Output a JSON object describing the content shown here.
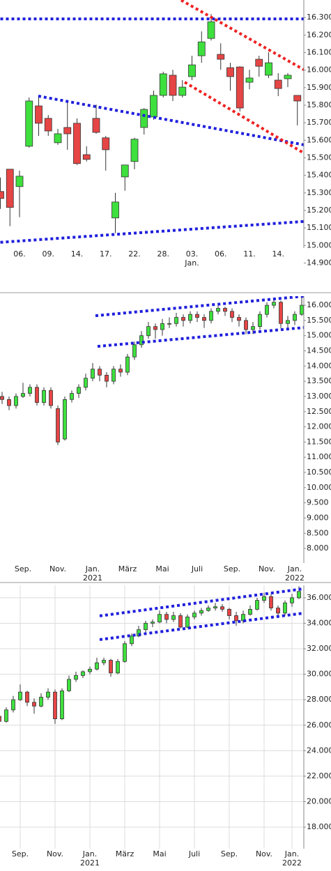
{
  "chart_data": [
    {
      "type": "candlestick",
      "categories": [
        null,
        null,
        "06.",
        null,
        null,
        "09.",
        null,
        null,
        "14.",
        null,
        null,
        "17.",
        null,
        null,
        "22.",
        null,
        null,
        "28.",
        null,
        null,
        "03.",
        null,
        null,
        "06.",
        null,
        null,
        "11.",
        null,
        null,
        "14.",
        null,
        null
      ],
      "x_sublabels": [
        null,
        null,
        null,
        null,
        null,
        null,
        null,
        null,
        null,
        null,
        null,
        null,
        null,
        null,
        null,
        null,
        null,
        null,
        null,
        null,
        "Jan.",
        null,
        null,
        null,
        null,
        null,
        null,
        null,
        null,
        null,
        null,
        null
      ],
      "open": [
        15308,
        15435,
        15336,
        15566,
        15796,
        15725,
        15586,
        15673,
        15697,
        15518,
        15725,
        15614,
        15157,
        15391,
        15479,
        15673,
        15733,
        15856,
        15971,
        15856,
        15963,
        16082,
        16181,
        16090,
        16014,
        16018,
        15931,
        16062,
        15971,
        15943,
        15951,
        15856
      ],
      "high": [
        15387,
        15435,
        15427,
        15844,
        15844,
        15744,
        15665,
        15824,
        15725,
        15566,
        15804,
        15625,
        15300,
        15459,
        15614,
        15784,
        15883,
        15991,
        16002,
        15943,
        16082,
        16221,
        16320,
        16153,
        16042,
        16022,
        16002,
        16082,
        16102,
        15983,
        15983,
        15856
      ],
      "low": [
        15209,
        15110,
        15161,
        15558,
        15625,
        15625,
        15574,
        15546,
        15459,
        15479,
        15637,
        15427,
        15070,
        15312,
        15435,
        15633,
        15717,
        15844,
        15824,
        15844,
        15943,
        16042,
        16169,
        16002,
        15883,
        15764,
        15891,
        15963,
        15955,
        15852,
        15903,
        15685
      ],
      "close": [
        15268,
        15217,
        15395,
        15824,
        15697,
        15653,
        15637,
        15637,
        15467,
        15491,
        15645,
        15546,
        15248,
        15459,
        15606,
        15776,
        15856,
        15979,
        15856,
        15903,
        16030,
        16161,
        16276,
        16062,
        15963,
        15784,
        15955,
        16022,
        16042,
        15895,
        15971,
        15824
      ],
      "up_color": "#3ee03e",
      "down_color": "#e64545",
      "ylim": [
        14870,
        16400
      ],
      "yticks": [
        {
          "value": 16300,
          "label": "16.300"
        },
        {
          "value": 16200,
          "label": "16.200"
        },
        {
          "value": 16100,
          "label": "16.100"
        },
        {
          "value": 16000,
          "label": "16.000"
        },
        {
          "value": 15900,
          "label": "15.900"
        },
        {
          "value": 15800,
          "label": "15.800"
        },
        {
          "value": 15700,
          "label": "15.700"
        },
        {
          "value": 15600,
          "label": "15.600"
        },
        {
          "value": 15500,
          "label": "15.500"
        },
        {
          "value": 15400,
          "label": "15.400"
        },
        {
          "value": 15300,
          "label": "15.300"
        },
        {
          "value": 15200,
          "label": "15.200"
        },
        {
          "value": 15100,
          "label": "15.100"
        },
        {
          "value": 15000,
          "label": "15.000"
        },
        {
          "value": 14900,
          "label": "14.900"
        }
      ],
      "grid": false,
      "lines": [
        {
          "color": "#1f1fdd",
          "x": [
            0,
            31.7
          ],
          "y": [
            16292,
            16292
          ]
        },
        {
          "color": "#1f1fdd",
          "x": [
            0,
            31.7
          ],
          "y": [
            15018,
            15137
          ]
        },
        {
          "color": "#1f1fdd",
          "x": [
            3.96,
            31.7
          ],
          "y": [
            15852,
            15574
          ]
        },
        {
          "color": "#ee2222",
          "x": [
            18.87,
            31.7
          ],
          "y": [
            16399,
            16002
          ]
        },
        {
          "color": "#ee2222",
          "x": [
            19.24,
            31.7
          ],
          "y": [
            15931,
            15526
          ]
        }
      ]
    },
    {
      "type": "candlestick",
      "categories": [
        null,
        null,
        null,
        "Sep.",
        null,
        null,
        null,
        null,
        "Nov.",
        null,
        null,
        null,
        null,
        "Jan.",
        null,
        null,
        null,
        null,
        "März",
        null,
        null,
        null,
        null,
        "Mai",
        null,
        null,
        null,
        null,
        "Juli",
        null,
        null,
        null,
        null,
        "Sep.",
        null,
        null,
        null,
        null,
        "Nov.",
        null,
        null,
        null,
        "Jan.",
        null
      ],
      "x_sublabels": [
        null,
        null,
        null,
        null,
        null,
        null,
        null,
        null,
        null,
        null,
        null,
        null,
        null,
        "2021",
        null,
        null,
        null,
        null,
        null,
        null,
        null,
        null,
        null,
        null,
        null,
        null,
        null,
        null,
        null,
        null,
        null,
        null,
        null,
        null,
        null,
        null,
        null,
        null,
        null,
        null,
        null,
        null,
        "2022",
        null
      ],
      "open": [
        13000,
        12900,
        12700,
        13000,
        13100,
        13300,
        12800,
        13200,
        12600,
        11600,
        12900,
        13100,
        13300,
        13600,
        13900,
        13700,
        13500,
        13900,
        13800,
        14300,
        14700,
        15000,
        15300,
        15200,
        15400,
        15400,
        15600,
        15500,
        15700,
        15600,
        15500,
        15800,
        15900,
        15800,
        15600,
        15500,
        15200,
        15300,
        15700,
        16000,
        16100,
        15400,
        15500,
        15700
      ],
      "high": [
        13150,
        13000,
        13100,
        13450,
        13400,
        13400,
        13300,
        13300,
        12700,
        13000,
        13200,
        13400,
        13750,
        14100,
        14000,
        13800,
        14000,
        14050,
        14400,
        14800,
        15150,
        15450,
        15400,
        15550,
        15600,
        15750,
        15700,
        15800,
        15800,
        15700,
        15900,
        16000,
        15950,
        15900,
        15700,
        15600,
        15450,
        15800,
        16100,
        16250,
        16150,
        15650,
        15800,
        16250
      ],
      "low": [
        12750,
        12550,
        12600,
        12950,
        13000,
        12700,
        12700,
        12600,
        11400,
        11550,
        12800,
        12950,
        13200,
        13500,
        13500,
        13300,
        13400,
        13650,
        13700,
        14200,
        14600,
        14900,
        14900,
        15000,
        15250,
        15300,
        15300,
        15400,
        15450,
        15250,
        15400,
        15700,
        15650,
        15450,
        15300,
        15050,
        15050,
        15200,
        15600,
        15900,
        15250,
        15200,
        15350,
        15650
      ],
      "close": [
        12900,
        12700,
        13000,
        13100,
        13300,
        12800,
        13200,
        12700,
        11500,
        12900,
        13100,
        13300,
        13600,
        13900,
        13700,
        13500,
        13900,
        13800,
        14300,
        14700,
        15000,
        15300,
        15200,
        15400,
        15400,
        15600,
        15500,
        15700,
        15600,
        15500,
        15800,
        15900,
        15800,
        15600,
        15500,
        15200,
        15300,
        15700,
        16000,
        16100,
        15400,
        15500,
        15700,
        16000
      ],
      "up_color": "#3ee03e",
      "down_color": "#e64545",
      "ylim": [
        7520,
        16300
      ],
      "yticks": [
        {
          "value": 16000,
          "label": "16.000"
        },
        {
          "value": 15500,
          "label": "15.500"
        },
        {
          "value": 15000,
          "label": "15.000"
        },
        {
          "value": 14500,
          "label": "14.500"
        },
        {
          "value": 14000,
          "label": "14.000"
        },
        {
          "value": 13500,
          "label": "13.500"
        },
        {
          "value": 13000,
          "label": "13.000"
        },
        {
          "value": 12500,
          "label": "12.500"
        },
        {
          "value": 12000,
          "label": "12.000"
        },
        {
          "value": 11500,
          "label": "11.500"
        },
        {
          "value": 11000,
          "label": "11.000"
        },
        {
          "value": 10500,
          "label": "10.500"
        },
        {
          "value": 10000,
          "label": "10.000"
        },
        {
          "value": 9500,
          "label": "9.500"
        },
        {
          "value": 9000,
          "label": "9.000"
        },
        {
          "value": 8500,
          "label": "8.500"
        },
        {
          "value": 8000,
          "label": "8.000"
        }
      ],
      "grid": false,
      "lines": [
        {
          "color": "#1f1fdd",
          "x": [
            13.4,
            43.3
          ],
          "y": [
            15656,
            16298
          ]
        },
        {
          "color": "#1f1fdd",
          "x": [
            13.7,
            43.3
          ],
          "y": [
            14647,
            15266
          ]
        }
      ]
    },
    {
      "type": "candlestick",
      "categories": [
        null,
        null,
        null,
        "Sep.",
        null,
        null,
        null,
        null,
        "Nov.",
        null,
        null,
        null,
        null,
        "Jan.",
        null,
        null,
        null,
        null,
        "März",
        null,
        null,
        null,
        null,
        "Mai",
        null,
        null,
        null,
        null,
        "Juli",
        null,
        null,
        null,
        null,
        "Sep.",
        null,
        null,
        null,
        null,
        "Nov.",
        null,
        null,
        null,
        "Jan.",
        null
      ],
      "x_sublabels": [
        null,
        null,
        null,
        null,
        null,
        null,
        null,
        null,
        null,
        null,
        null,
        null,
        null,
        "2021",
        null,
        null,
        null,
        null,
        null,
        null,
        null,
        null,
        null,
        null,
        null,
        null,
        null,
        null,
        null,
        null,
        null,
        null,
        null,
        null,
        null,
        null,
        null,
        null,
        null,
        null,
        null,
        null,
        "2022",
        null
      ],
      "open": [
        26700,
        26300,
        27200,
        28000,
        28600,
        27800,
        27500,
        28200,
        28600,
        26500,
        28700,
        29600,
        29900,
        30200,
        30400,
        30900,
        31100,
        30100,
        31000,
        32400,
        33000,
        33500,
        34000,
        34100,
        34700,
        34300,
        34600,
        33700,
        34500,
        34800,
        35000,
        35200,
        35300,
        35100,
        34600,
        34200,
        34700,
        35100,
        35800,
        36100,
        35200,
        34800,
        35600,
        36000
      ],
      "high": [
        27000,
        27400,
        28300,
        29200,
        28700,
        28100,
        28500,
        28900,
        28800,
        28900,
        29900,
        30200,
        30300,
        30600,
        31300,
        31300,
        31200,
        31200,
        32600,
        33200,
        33800,
        34200,
        34300,
        35000,
        34900,
        34900,
        34800,
        34700,
        35000,
        35200,
        35400,
        35600,
        35500,
        35200,
        34900,
        35000,
        35400,
        36000,
        36400,
        36300,
        35400,
        35800,
        36300,
        36900
      ],
      "low": [
        26000,
        26200,
        27000,
        27900,
        27500,
        26900,
        27400,
        28000,
        26100,
        26400,
        28600,
        29400,
        29700,
        30000,
        30300,
        30700,
        29800,
        30000,
        30900,
        32200,
        32900,
        33300,
        33700,
        34000,
        34000,
        34100,
        33600,
        33600,
        34300,
        34600,
        34900,
        35000,
        34900,
        34300,
        33800,
        34000,
        34600,
        35000,
        35600,
        35000,
        34500,
        34600,
        35300,
        35900
      ],
      "close": [
        26300,
        27200,
        28000,
        28600,
        27800,
        27500,
        28200,
        28600,
        26500,
        28700,
        29600,
        29900,
        30200,
        30400,
        30900,
        31100,
        30100,
        31000,
        32400,
        33000,
        33500,
        34000,
        34100,
        34700,
        34300,
        34600,
        33700,
        34500,
        34800,
        35000,
        35200,
        35300,
        35100,
        34600,
        34200,
        34700,
        35100,
        35800,
        36100,
        35200,
        34800,
        35600,
        36000,
        36500
      ],
      "up_color": "#3ee03e",
      "down_color": "#e64545",
      "ylim": [
        16470,
        36980
      ],
      "yticks": [
        {
          "value": 36000,
          "label": "36.000"
        },
        {
          "value": 34000,
          "label": "34.000"
        },
        {
          "value": 32000,
          "label": "32.000"
        },
        {
          "value": 30000,
          "label": "30.000"
        },
        {
          "value": 28000,
          "label": "28.000"
        },
        {
          "value": 26000,
          "label": "26.000"
        },
        {
          "value": 24000,
          "label": "24.000"
        },
        {
          "value": 22000,
          "label": "22.000"
        },
        {
          "value": 20000,
          "label": "20.000"
        },
        {
          "value": 18000,
          "label": "18.000"
        }
      ],
      "grid": true,
      "lines": [
        {
          "color": "#1f1fdd",
          "x": [
            14.4,
            43.7
          ],
          "y": [
            34578,
            36711
          ]
        },
        {
          "color": "#1f1fdd",
          "x": [
            14.4,
            43.7
          ],
          "y": [
            32718,
            34797
          ]
        }
      ]
    }
  ]
}
